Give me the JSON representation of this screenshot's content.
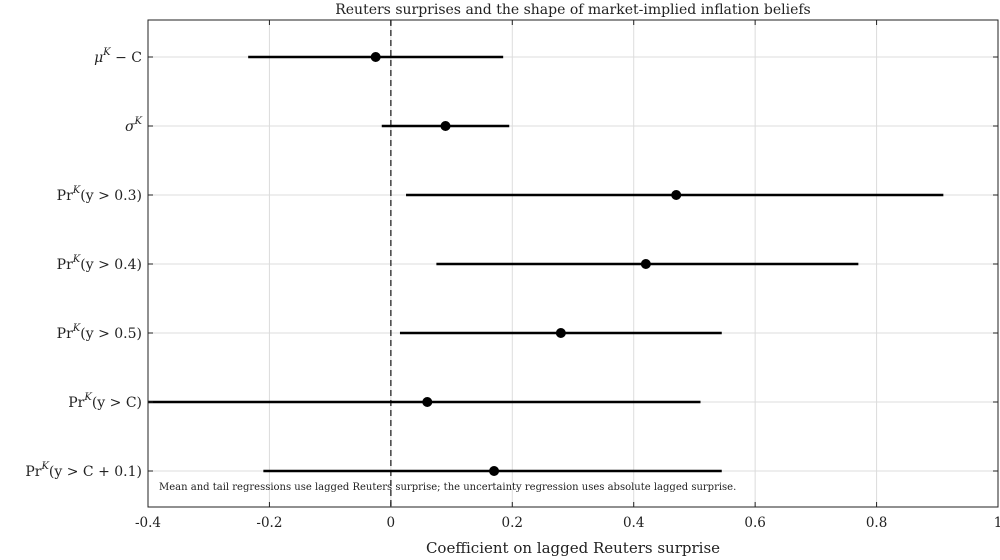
{
  "chart_data": {
    "type": "scatter",
    "title": "Reuters surprises and the shape of market-implied inflation beliefs",
    "xlabel": "Coefficient on lagged Reuters surprise",
    "ylabel": "",
    "xlim": [
      -0.4,
      1.0
    ],
    "xticks": [
      -0.4,
      -0.2,
      0,
      0.2,
      0.4,
      0.6,
      0.8,
      1
    ],
    "x_tick_labels": [
      "-0.4",
      "-0.2",
      "0",
      "0.2",
      "0.4",
      "0.6",
      "0.8",
      "1"
    ],
    "grid": true,
    "reference_line": {
      "x": 0,
      "style": "dashed"
    },
    "annotation": "Mean and tail regressions use lagged Reuters surprise; the uncertainty regression uses absolute lagged surprise.",
    "rows": [
      {
        "label_base": "μ",
        "label_sup": "K",
        "label_rest": " − C",
        "estimate": -0.025,
        "lower": -0.235,
        "upper": 0.185
      },
      {
        "label_base": "σ",
        "label_sup": "K",
        "label_rest": "",
        "estimate": 0.09,
        "lower": -0.015,
        "upper": 0.195
      },
      {
        "label_base": "Pr",
        "label_sup": "K",
        "label_rest": "(y > 0.3)",
        "estimate": 0.47,
        "lower": 0.025,
        "upper": 0.91
      },
      {
        "label_base": "Pr",
        "label_sup": "K",
        "label_rest": "(y > 0.4)",
        "estimate": 0.42,
        "lower": 0.075,
        "upper": 0.77
      },
      {
        "label_base": "Pr",
        "label_sup": "K",
        "label_rest": "(y > 0.5)",
        "estimate": 0.28,
        "lower": 0.015,
        "upper": 0.545
      },
      {
        "label_base": "Pr",
        "label_sup": "K",
        "label_rest": "(y > C)",
        "estimate": 0.06,
        "lower": -0.4,
        "upper": 0.51
      },
      {
        "label_base": "Pr",
        "label_sup": "K",
        "label_rest": "(y > C + 0.1)",
        "estimate": 0.17,
        "lower": -0.21,
        "upper": 0.545
      }
    ]
  }
}
